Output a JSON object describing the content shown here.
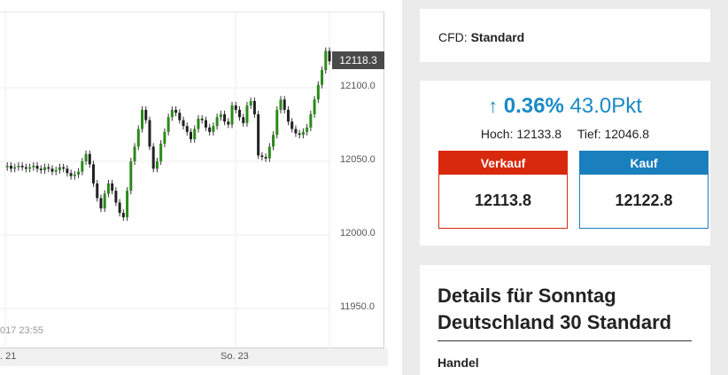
{
  "chart": {
    "current_price": "12118.3",
    "y_ticks": [
      "12100.0",
      "12050.0",
      "12000.0",
      "11950.0"
    ],
    "x_ticks": [
      ". 21",
      "So. 23"
    ],
    "timestamp": "017 23:55"
  },
  "chart_data": {
    "type": "candlestick",
    "y_ticks": [
      12100.0,
      12050.0,
      12000.0,
      11950.0
    ],
    "ylim": [
      11935,
      12130
    ],
    "x_ticks": [
      ". 21",
      "So. 23"
    ],
    "current_price": 12118.3,
    "series_note": "intraday price candles",
    "values": [
      12046,
      12047,
      12045,
      12046,
      12047,
      12046,
      12045,
      12046,
      12047,
      12045,
      12044,
      12046,
      12045,
      12043,
      12044,
      12046,
      12045,
      12042,
      12040,
      12041,
      12043,
      12050,
      12055,
      12048,
      12035,
      12025,
      12018,
      12028,
      12035,
      12030,
      12022,
      12015,
      12012,
      12030,
      12050,
      12060,
      12072,
      12085,
      12078,
      12060,
      12045,
      12050,
      12062,
      12070,
      12080,
      12085,
      12083,
      12078,
      12074,
      12070,
      12065,
      12072,
      12079,
      12078,
      12073,
      12070,
      12074,
      12080,
      12082,
      12077,
      12075,
      12088,
      12085,
      12080,
      12076,
      12088,
      12091,
      12082,
      12054,
      12053,
      12052,
      12060,
      12068,
      12085,
      12092,
      12085,
      12077,
      12072,
      12069,
      12068,
      12070,
      12073,
      12082,
      12092,
      12102,
      12112,
      12125,
      12118
    ]
  },
  "cfd": {
    "label": "CFD: ",
    "value": "Standard"
  },
  "quote": {
    "arrow": "🠅",
    "change_pct": "0.36%",
    "change_pts": "43.0Pkt",
    "high": "Hoch: 12133.8",
    "low": "Tief: 12046.8",
    "sell_label": "Verkauf",
    "sell_price": "12113.8",
    "buy_label": "Kauf",
    "buy_price": "12122.8"
  },
  "details": {
    "title_line1": "Details für Sonntag",
    "title_line2": "Deutschland 30 Standard",
    "section": "Handel"
  },
  "colors": {
    "accent": "#1a8ac6",
    "sell": "#d9290c",
    "buy": "#1a7fbd",
    "up": "#2a8a1a",
    "down": "#222222"
  }
}
